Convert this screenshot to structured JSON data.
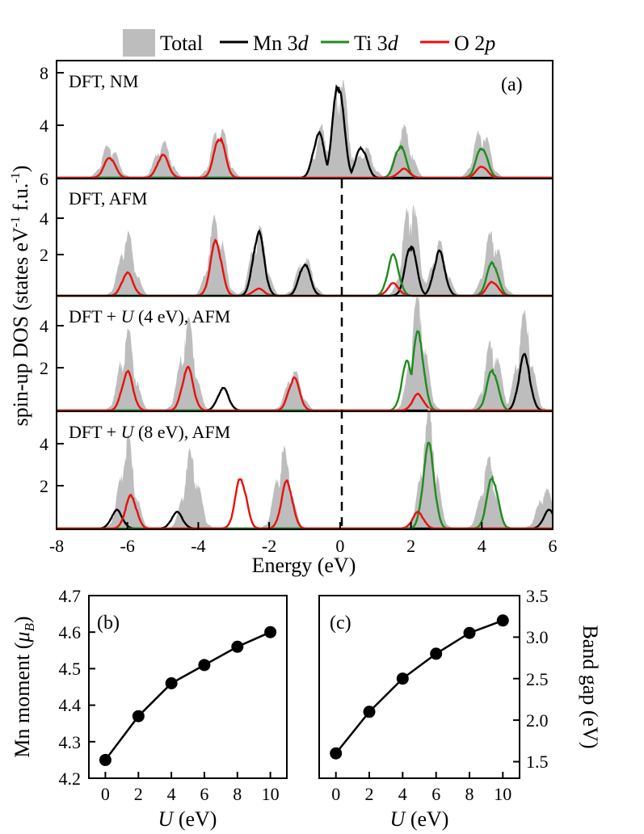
{
  "legend": {
    "total": "Total",
    "mn_prefix": "Mn 3",
    "mn_suffix": "d",
    "ti_prefix": "Ti 3",
    "ti_suffix": "d",
    "o_prefix": "O 2",
    "o_suffix": "p"
  },
  "colors": {
    "total": "#bdbdbd",
    "mn": "#000000",
    "ti": "#1e8c1e",
    "o": "#e8100c"
  },
  "panel_a": {
    "label": "(a)",
    "ylabel_prefix": "spin-up DOS (states eV",
    "ylabel_sup1": "-1",
    "ylabel_mid": " f.u.",
    "ylabel_sup2": "-1",
    "ylabel_suffix": ")",
    "xlabel": "Energy (eV)",
    "xticks": [
      "-8",
      "-6",
      "-4",
      "-2",
      "0",
      "2",
      "4",
      "6"
    ],
    "subplots": [
      {
        "label": "DFT, NM",
        "yticks": [
          "8",
          "4",
          "6"
        ]
      },
      {
        "label": "DFT, AFM",
        "yticks": [
          "4",
          "2"
        ]
      },
      {
        "label_pre": "DFT + ",
        "label_u": "U",
        "label_post": " (4 eV), AFM",
        "yticks": [
          "4",
          "2"
        ]
      },
      {
        "label_pre": "DFT + ",
        "label_u": "U",
        "label_post": " (8 eV), AFM",
        "yticks": [
          "4",
          "2"
        ]
      }
    ]
  },
  "panel_b": {
    "label": "(b)",
    "ylabel_prefix": "Mn moment (",
    "ylabel_mu": "μ",
    "ylabel_sub": "B",
    "ylabel_suffix": ")",
    "xlabel_u": "U",
    "xlabel_rest": " (eV)",
    "yticks": [
      "4.7",
      "4.6",
      "4.5",
      "4.4",
      "4.3",
      "4.2"
    ],
    "xticks": [
      "0",
      "2",
      "4",
      "6",
      "8",
      "10"
    ]
  },
  "panel_c": {
    "label": "(c)",
    "ylabel": "Band gap (eV)",
    "xlabel_u": "U",
    "xlabel_rest": " (eV)",
    "yticks": [
      "3.5",
      "3.0",
      "2.5",
      "2.0",
      "1.5"
    ],
    "xticks": [
      "0",
      "2",
      "4",
      "6",
      "8",
      "10"
    ]
  },
  "chart_data": [
    {
      "type": "area",
      "panel": "a",
      "xlabel": "Energy (eV)",
      "ylabel": "spin-up DOS (states eV-1 f.u.-1)",
      "xlim": [
        -8,
        6
      ],
      "fermi_level": 0,
      "series_names": [
        "Total",
        "Mn 3d",
        "Ti 3d",
        "O 2p"
      ],
      "subplots": [
        {
          "label": "DFT, NM",
          "ylim": [
            0,
            9
          ],
          "peaks": {
            "Total": [
              [
                -6.5,
                2.8
              ],
              [
                -5,
                2.9
              ],
              [
                -3.4,
                4.4
              ],
              [
                -0.5,
                4.1
              ],
              [
                0,
                8.4
              ],
              [
                0.7,
                2.5
              ],
              [
                1.8,
                4.1
              ],
              [
                4.0,
                4.1
              ]
            ],
            "Mn 3d": [
              [
                -0.6,
                3.5
              ],
              [
                -0.05,
                7.5
              ],
              [
                0.6,
                2.4
              ]
            ],
            "Ti 3d": [
              [
                1.7,
                2.5
              ],
              [
                4.0,
                2.4
              ]
            ],
            "O 2p": [
              [
                -6.5,
                1.6
              ],
              [
                -5,
                1.8
              ],
              [
                -3.4,
                3.2
              ],
              [
                1.8,
                0.7
              ],
              [
                4.0,
                0.9
              ]
            ]
          }
        },
        {
          "label": "DFT, AFM",
          "ylim": [
            0,
            6
          ],
          "peaks": {
            "Total": [
              [
                -6,
                3.6
              ],
              [
                -3.5,
                4.6
              ],
              [
                -2.3,
                4.0
              ],
              [
                -1.0,
                2.3
              ],
              [
                2,
                5.8
              ],
              [
                2.8,
                3.1
              ],
              [
                4.3,
                3.9
              ]
            ],
            "Mn 3d": [
              [
                -2.3,
                3.6
              ],
              [
                -1.0,
                1.8
              ],
              [
                2.0,
                2.9
              ],
              [
                2.8,
                2.5
              ]
            ],
            "Ti 3d": [
              [
                1.5,
                2.3
              ],
              [
                4.3,
                1.9
              ]
            ],
            "O 2p": [
              [
                -6,
                1.3
              ],
              [
                -3.5,
                3.1
              ],
              [
                -2.3,
                0.4
              ],
              [
                1.5,
                0.7
              ],
              [
                4.3,
                0.8
              ]
            ]
          }
        },
        {
          "label": "DFT + U (4 eV), AFM",
          "ylim": [
            0,
            5.4
          ],
          "peaks": {
            "Total": [
              [
                -6,
                4.0
              ],
              [
                -4.3,
                4.5
              ],
              [
                -1.3,
                2.0
              ],
              [
                2.2,
                5.6
              ],
              [
                4.3,
                3.6
              ],
              [
                5.2,
                4.8
              ]
            ],
            "Mn 3d": [
              [
                -3.3,
                1.1
              ],
              [
                5.2,
                2.7
              ]
            ],
            "Ti 3d": [
              [
                1.9,
                2.4
              ],
              [
                2.2,
                3.8
              ],
              [
                4.3,
                2.0
              ]
            ],
            "O 2p": [
              [
                -6,
                1.9
              ],
              [
                -4.3,
                2.1
              ],
              [
                -1.3,
                1.6
              ],
              [
                2.2,
                0.8
              ]
            ]
          }
        },
        {
          "label": "DFT + U (8 eV), AFM",
          "ylim": [
            0,
            5.4
          ],
          "peaks": {
            "Total": [
              [
                -6.0,
                4.5
              ],
              [
                -4.2,
                3.9
              ],
              [
                -1.6,
                4.0
              ],
              [
                2.5,
                5.8
              ],
              [
                4.2,
                3.5
              ],
              [
                5.8,
                2.0
              ]
            ],
            "Mn 3d": [
              [
                -6.3,
                0.9
              ],
              [
                -4.6,
                0.8
              ],
              [
                5.9,
                0.9
              ]
            ],
            "Ti 3d": [
              [
                2.5,
                4.1
              ],
              [
                4.3,
                2.5
              ]
            ],
            "O 2p": [
              [
                -5.9,
                1.6
              ],
              [
                -2.8,
                2.5
              ],
              [
                -1.5,
                2.3
              ],
              [
                2.2,
                0.8
              ]
            ]
          }
        }
      ]
    },
    {
      "type": "line",
      "panel": "b",
      "xlabel": "U (eV)",
      "ylabel": "Mn moment (μB)",
      "x": [
        0,
        2,
        4,
        6,
        8,
        10
      ],
      "y": [
        4.25,
        4.37,
        4.46,
        4.51,
        4.56,
        4.6
      ],
      "ylim": [
        4.2,
        4.7
      ],
      "xlim": [
        -1,
        11
      ]
    },
    {
      "type": "line",
      "panel": "c",
      "xlabel": "U (eV)",
      "ylabel": "Band gap (eV)",
      "x": [
        0,
        2,
        4,
        6,
        8,
        10
      ],
      "y": [
        1.6,
        2.1,
        2.5,
        2.8,
        3.05,
        3.2
      ],
      "ylim": [
        1.3,
        3.5
      ],
      "xlim": [
        -1,
        11
      ]
    }
  ]
}
